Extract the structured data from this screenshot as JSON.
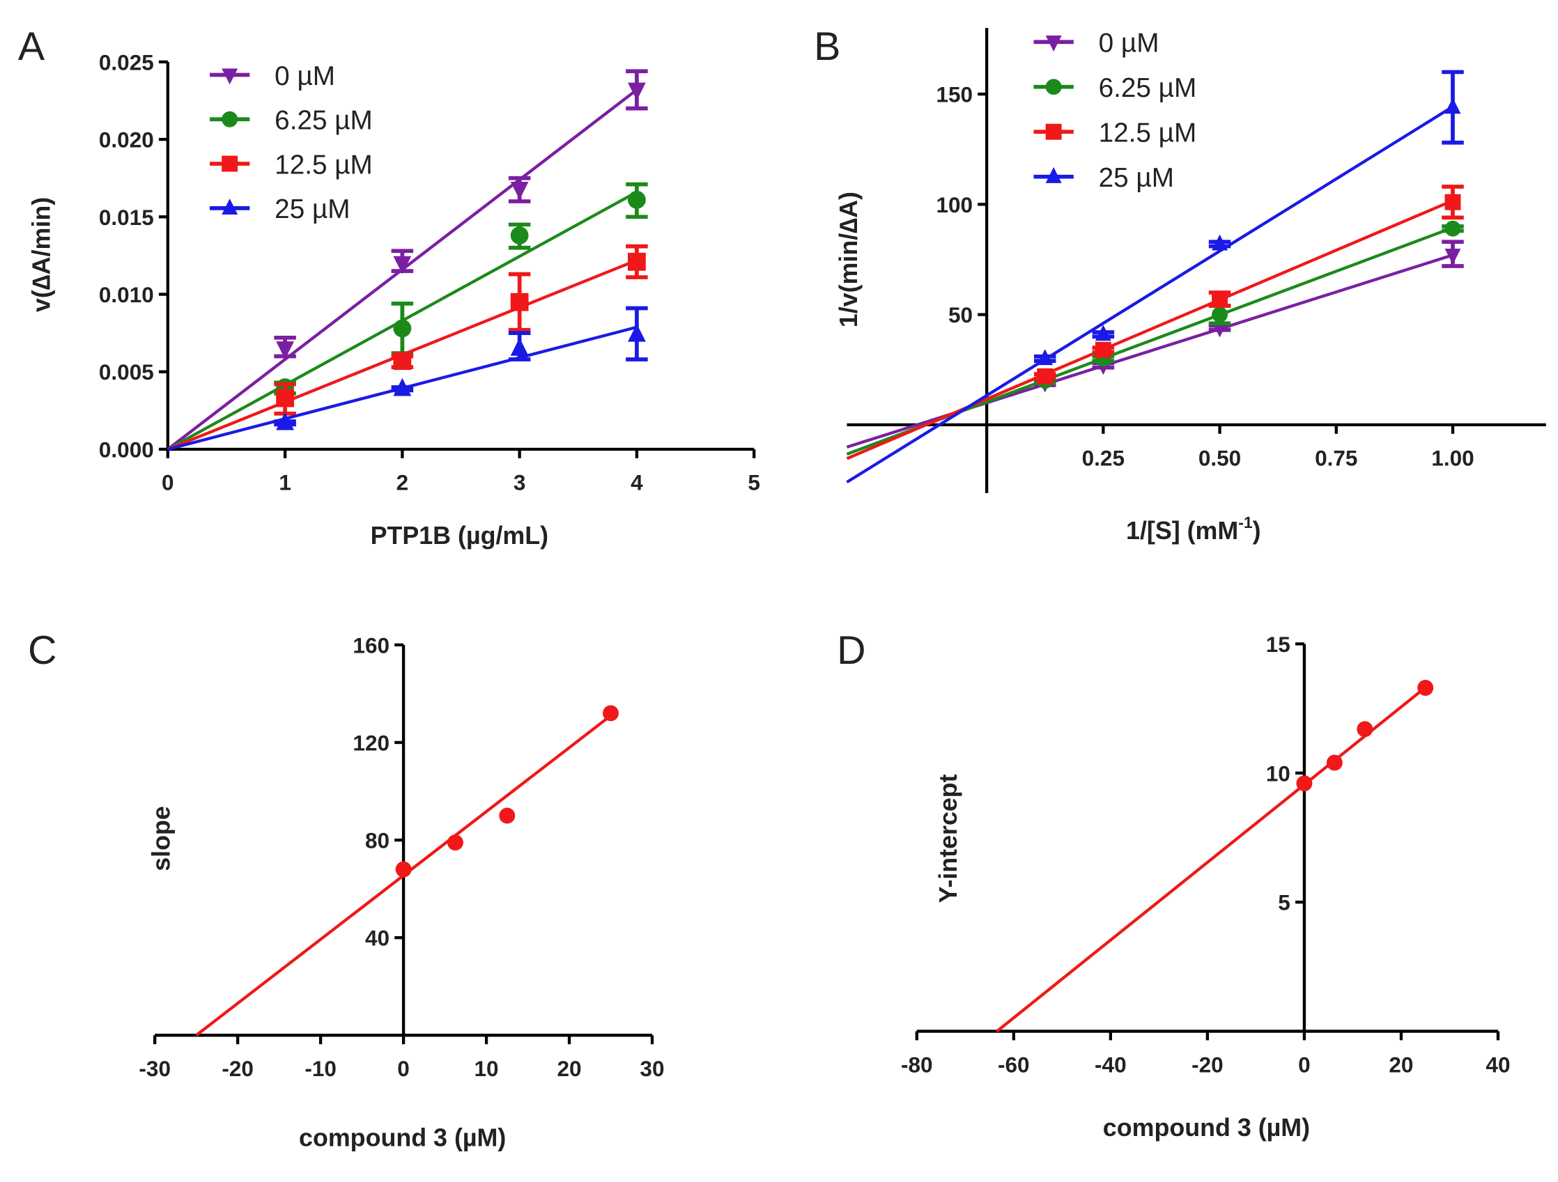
{
  "chart_data": [
    {
      "panel": "A",
      "type": "line",
      "xlabel": "PTP1B (µg/mL)",
      "ylabel": "v(∆A/min)",
      "xlim": [
        0,
        5
      ],
      "ylim": [
        0,
        0.025
      ],
      "xticks": [
        "0",
        "1",
        "2",
        "3",
        "4",
        "5"
      ],
      "yticks": [
        "0.000",
        "0.005",
        "0.010",
        "0.015",
        "0.020",
        "0.025"
      ],
      "legend_position": "top-left",
      "series": [
        {
          "name": "0 µM",
          "color": "#7b1fa2",
          "marker": "triangle-down",
          "x": [
            1,
            2,
            3,
            4
          ],
          "y": [
            0.0065,
            0.012,
            0.0168,
            0.0232
          ],
          "err_low": [
            0.006,
            0.0115,
            0.016,
            0.022
          ],
          "err_high": [
            0.0072,
            0.0128,
            0.0175,
            0.0244
          ],
          "fit": {
            "slope": 0.0058,
            "intercept": 0,
            "x_range": [
              0,
              4
            ]
          }
        },
        {
          "name": "6.25 µM",
          "color": "#1b8a1b",
          "marker": "circle",
          "x": [
            1,
            2,
            3,
            4
          ],
          "y": [
            0.004,
            0.0078,
            0.0138,
            0.0161
          ],
          "err_low": [
            0.0036,
            0.0062,
            0.013,
            0.015
          ],
          "err_high": [
            0.0043,
            0.0094,
            0.0145,
            0.0171
          ],
          "fit": {
            "slope": 0.00415,
            "intercept": 0,
            "x_range": [
              0,
              4
            ]
          }
        },
        {
          "name": "12.5 µM",
          "color": "#f01818",
          "marker": "square",
          "x": [
            1,
            2,
            3,
            4
          ],
          "y": [
            0.0033,
            0.0057,
            0.0095,
            0.0121
          ],
          "err_low": [
            0.0023,
            0.0053,
            0.0077,
            0.0111
          ],
          "err_high": [
            0.0042,
            0.006,
            0.0113,
            0.0131
          ],
          "fit": {
            "slope": 0.00305,
            "intercept": 0,
            "x_range": [
              0,
              4
            ]
          }
        },
        {
          "name": "25 µM",
          "color": "#1a1ae6",
          "marker": "triangle-up",
          "x": [
            1,
            2,
            3,
            4
          ],
          "y": [
            0.0017,
            0.0039,
            0.0065,
            0.0074
          ],
          "err_low": [
            0.0016,
            0.0038,
            0.0058,
            0.0058
          ],
          "err_high": [
            0.0018,
            0.004,
            0.0075,
            0.0091
          ],
          "fit": {
            "slope": 0.00197,
            "intercept": 0,
            "x_range": [
              0,
              4
            ]
          }
        }
      ]
    },
    {
      "panel": "B",
      "type": "line",
      "xlabel_parts": [
        "1/[S] (mM",
        "-1",
        ")"
      ],
      "ylabel": "1/v(min/∆A)",
      "xlim": [
        -0.3,
        1.2
      ],
      "ylim": [
        -31,
        180
      ],
      "xticks": [
        "0.25",
        "0.50",
        "0.75",
        "1.00"
      ],
      "yticks": [
        "50",
        "100",
        "150"
      ],
      "legend_position": "top-left",
      "series": [
        {
          "name": "0 µM",
          "color": "#7b1fa2",
          "marker": "triangle-down",
          "x": [
            0.125,
            0.25,
            0.5,
            1
          ],
          "y": [
            19,
            27,
            44,
            77
          ],
          "err_low": [
            18,
            26,
            43,
            72
          ],
          "err_high": [
            20,
            28,
            45,
            83
          ],
          "fit": {
            "slope": 67,
            "intercept": 10,
            "x_range": [
              -0.3,
              1
            ]
          }
        },
        {
          "name": "6.25 µM",
          "color": "#1b8a1b",
          "marker": "circle",
          "x": [
            0.125,
            0.25,
            0.5,
            1
          ],
          "y": [
            20,
            30,
            50,
            89
          ],
          "err_low": [
            19,
            29,
            46,
            88
          ],
          "err_high": [
            21,
            31,
            54,
            90
          ],
          "fit": {
            "slope": 79,
            "intercept": 10.4,
            "x_range": [
              -0.3,
              1
            ]
          }
        },
        {
          "name": "12.5 µM",
          "color": "#f01818",
          "marker": "square",
          "x": [
            0.125,
            0.25,
            0.5,
            1
          ],
          "y": [
            22,
            34,
            57,
            101
          ],
          "err_low": [
            21,
            33,
            54,
            94
          ],
          "err_high": [
            23,
            35,
            60,
            108
          ],
          "fit": {
            "slope": 90,
            "intercept": 11.7,
            "x_range": [
              -0.3,
              1
            ]
          }
        },
        {
          "name": "25 µM",
          "color": "#1a1ae6",
          "marker": "triangle-up",
          "x": [
            0.125,
            0.25,
            0.5,
            1
          ],
          "y": [
            30,
            41,
            82,
            144
          ],
          "err_low": [
            29,
            40,
            81,
            128
          ],
          "err_high": [
            31,
            42,
            83,
            160
          ],
          "fit": {
            "slope": 131,
            "intercept": 13.3,
            "x_range": [
              -0.3,
              1
            ]
          }
        }
      ]
    },
    {
      "panel": "C",
      "type": "scatter",
      "xlabel": "compound 3 (µM)",
      "ylabel": "slope",
      "xlim": [
        -30,
        30
      ],
      "ylim": [
        0,
        160
      ],
      "xticks": [
        "-30",
        "-20",
        "-10",
        "0",
        "10",
        "20",
        "30"
      ],
      "yticks": [
        "40",
        "80",
        "120",
        "160"
      ],
      "series": [
        {
          "name": "slope",
          "color": "#f01818",
          "marker": "circle",
          "x": [
            0,
            6.25,
            12.5,
            25
          ],
          "y": [
            68,
            79,
            90,
            132
          ],
          "fit": {
            "slope": 2.62,
            "intercept": 65.5,
            "x_range": [
              -25,
              25
            ]
          }
        }
      ]
    },
    {
      "panel": "D",
      "type": "scatter",
      "xlabel": "compound 3 (µM)",
      "ylabel": "Y-intercept",
      "xlim": [
        -80,
        40
      ],
      "ylim": [
        0,
        15
      ],
      "xticks": [
        "-80",
        "-60",
        "-40",
        "-20",
        "0",
        "20",
        "40"
      ],
      "yticks": [
        "5",
        "10",
        "15"
      ],
      "series": [
        {
          "name": "Y-intercept",
          "color": "#f01818",
          "marker": "circle",
          "x": [
            0,
            6.25,
            12.5,
            25
          ],
          "y": [
            9.6,
            10.4,
            11.7,
            13.3
          ],
          "fit": {
            "slope": 0.1505,
            "intercept": 9.55,
            "x_range": [
              -63.5,
              25
            ]
          }
        }
      ]
    }
  ]
}
